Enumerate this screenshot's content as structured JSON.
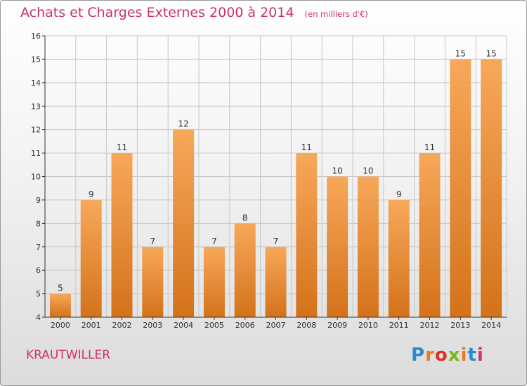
{
  "title": "Achats et Charges Externes 2000 à 2014",
  "unit": "(en milliers d'€)",
  "commune": "KRAUTWILLER",
  "brand": "Proxiti",
  "brand_colors": [
    "#2b8ac9",
    "#e87a1e",
    "#e22b2b",
    "#7ab51d",
    "#e87a1e",
    "#2b8ac9",
    "#cc3366"
  ],
  "colors": {
    "accent": "#cc3366",
    "bar_light": "#f7a85a",
    "bar_dark": "#d4721a",
    "grid": "#c8c8c8",
    "axis": "#333333"
  },
  "chart_data": {
    "type": "bar",
    "categories": [
      "2000",
      "2001",
      "2002",
      "2003",
      "2004",
      "2005",
      "2006",
      "2007",
      "2008",
      "2009",
      "2010",
      "2011",
      "2012",
      "2013",
      "2014"
    ],
    "values": [
      5,
      9,
      11,
      7,
      12,
      7,
      8,
      7,
      11,
      10,
      10,
      9,
      11,
      15,
      15
    ],
    "ylim": [
      4,
      16
    ],
    "yticks": [
      4,
      5,
      6,
      7,
      8,
      9,
      10,
      11,
      12,
      13,
      14,
      15,
      16
    ],
    "grid": true,
    "data_labels": true
  }
}
